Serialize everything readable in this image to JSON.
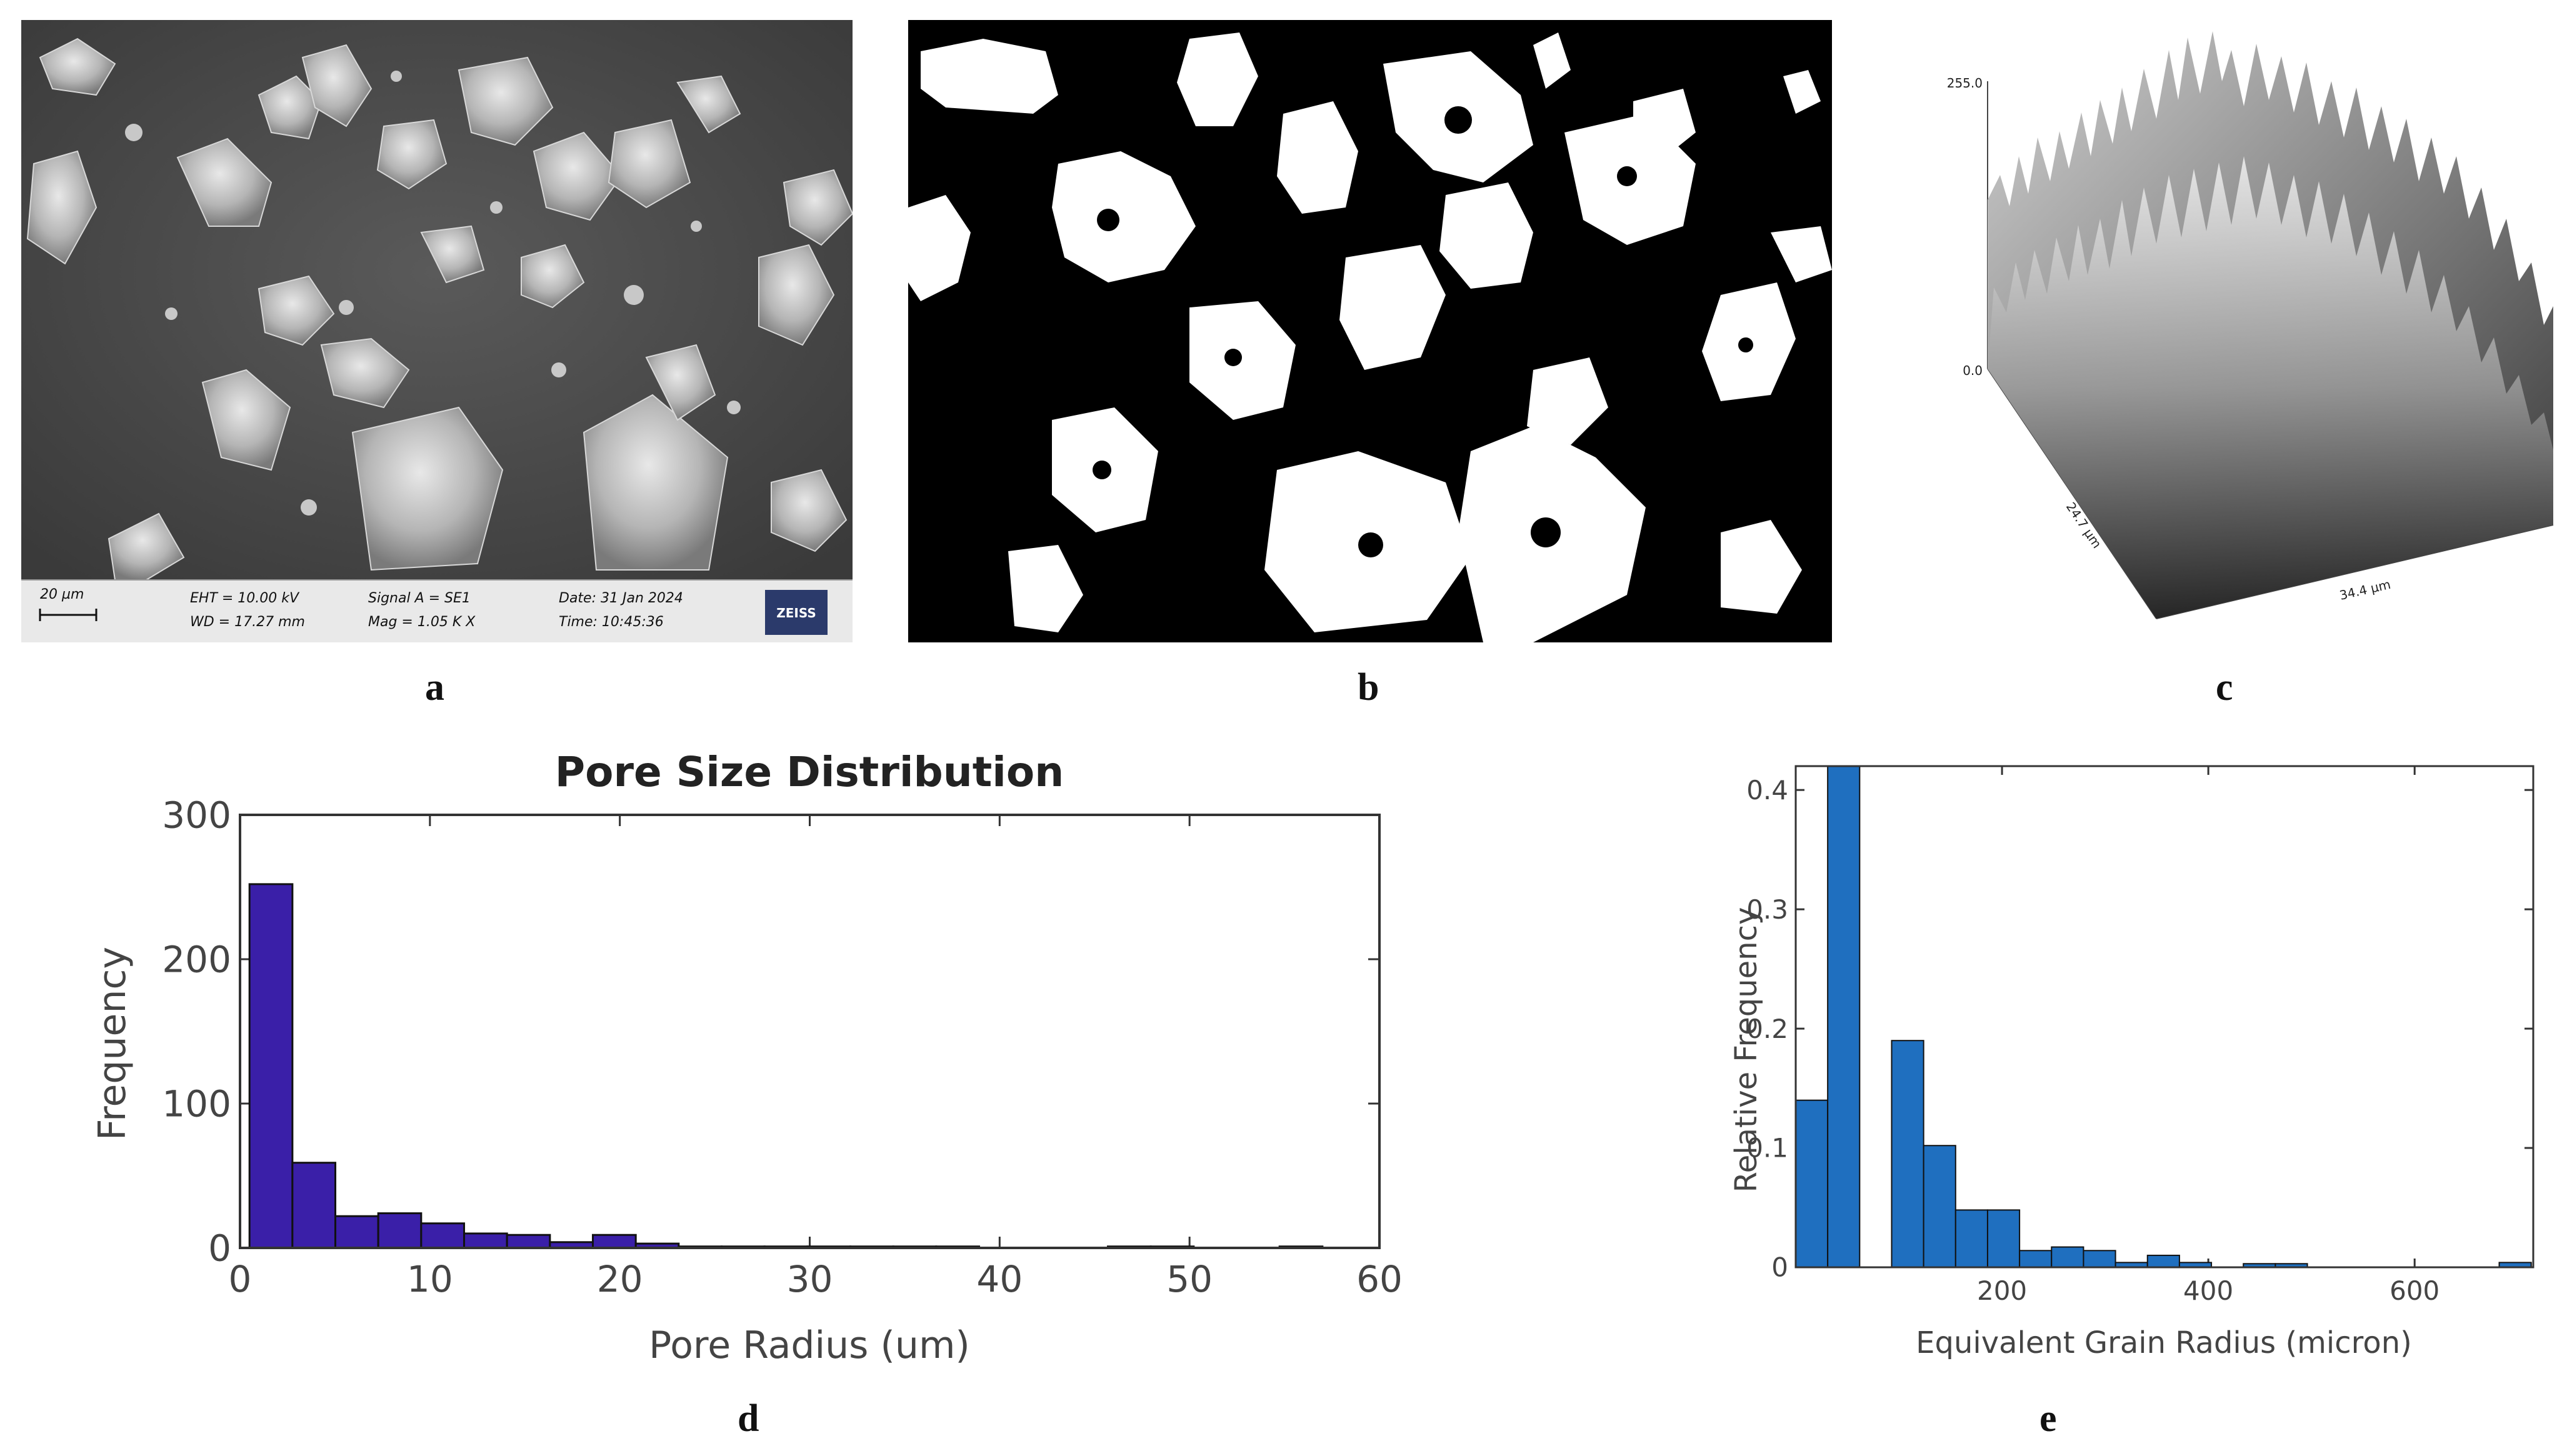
{
  "panel_labels": {
    "a": "a",
    "b": "b",
    "c": "c",
    "d": "d",
    "e": "e"
  },
  "sem_info": {
    "scale_bar": "20 µm",
    "eht": "EHT = 10.00 kV",
    "wd": "WD = 17.27 mm",
    "signal": "Signal A = SE1",
    "mag": "Mag =    1.05 K X",
    "date": "Date: 31 Jan 2024",
    "time": "Time: 10:45:36",
    "logo": "ZEISS"
  },
  "surface_plot": {
    "z_max_label": "255.0",
    "z_min_label": "0.0",
    "y_dim_label": "24.7 µm",
    "x_dim_label": "34.4 µm"
  },
  "chart_data": [
    {
      "type": "bar",
      "title": "Pore Size Distribution",
      "xlabel": "Pore Radius (um)",
      "ylabel": "Frequency",
      "xlim": [
        0,
        60
      ],
      "ylim": [
        0,
        300
      ],
      "xticks": [
        0,
        10,
        20,
        30,
        40,
        50,
        60
      ],
      "yticks": [
        0,
        100,
        200,
        300
      ],
      "bar_color": "#3a1fa8",
      "bin_width": 2.26,
      "bin_start": 0.5,
      "values": [
        252,
        59,
        22,
        24,
        17,
        10,
        9,
        4,
        9,
        3,
        1,
        1,
        1,
        1,
        1,
        1,
        1,
        0,
        0,
        0,
        1,
        1,
        0,
        0,
        1
      ]
    },
    {
      "type": "bar",
      "title": "",
      "xlabel": "Equivalent Grain Radius (micron)",
      "ylabel": "Relative Frequency",
      "xlim": [
        0,
        715
      ],
      "ylim": [
        0,
        0.42
      ],
      "xticks": [
        200,
        400,
        600
      ],
      "yticks": [
        0,
        0.1,
        0.2,
        0.3,
        0.4
      ],
      "bar_color": "#1f6fbf",
      "bin_width": 31,
      "bin_start": 0,
      "values": [
        0.14,
        0.42,
        0.0,
        0.19,
        0.102,
        0.048,
        0.048,
        0.014,
        0.017,
        0.014,
        0.004,
        0.01,
        0.004,
        0.0,
        0.003,
        0.003,
        0.0,
        0.0,
        0.0,
        0.0,
        0.0,
        0.0,
        0.004
      ]
    }
  ]
}
